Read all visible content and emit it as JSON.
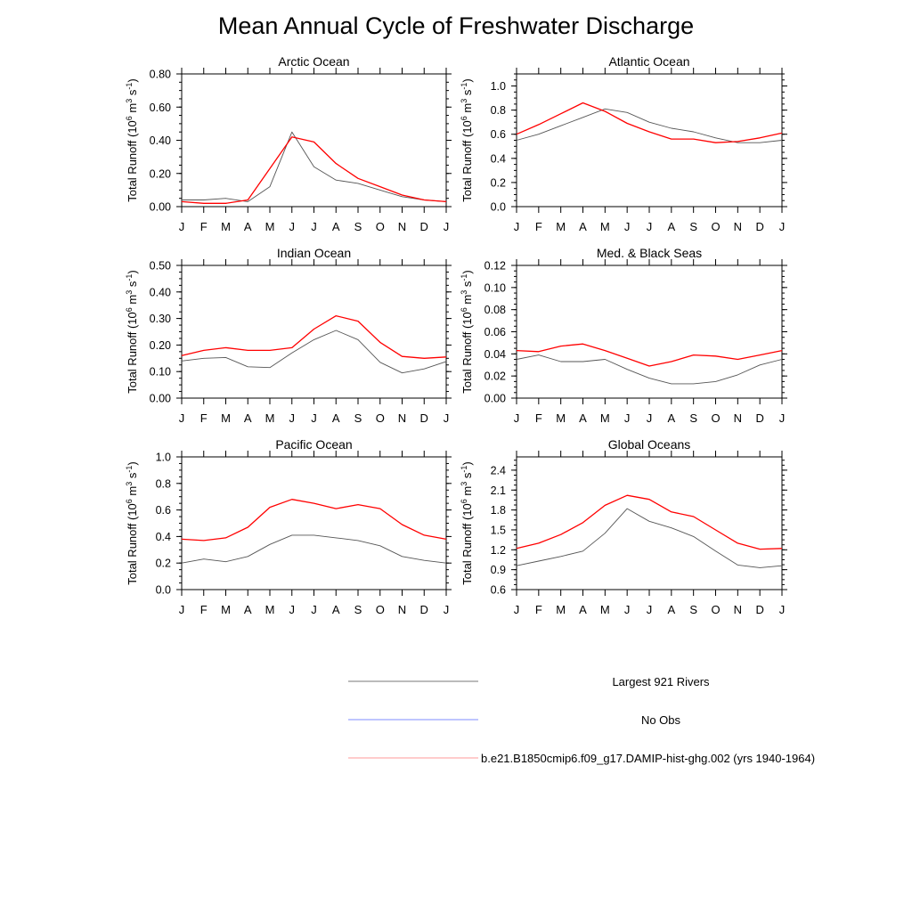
{
  "title": "Mean Annual Cycle of Freshwater Discharge",
  "chart_data": [
    {
      "type": "line",
      "title": "Arctic Ocean",
      "ylabel": "Total Runoff (10^6 m^3 s^-1)",
      "x": [
        "J",
        "F",
        "M",
        "A",
        "M",
        "J",
        "J",
        "A",
        "S",
        "O",
        "N",
        "D",
        "J"
      ],
      "ylim": [
        0,
        0.8
      ],
      "yticks": [
        "0.00",
        "0.20",
        "0.40",
        "0.60",
        "0.80"
      ],
      "series": [
        {
          "name": "Largest 921 Rivers",
          "color": "#555555",
          "values": [
            0.04,
            0.04,
            0.05,
            0.03,
            0.12,
            0.45,
            0.24,
            0.16,
            0.14,
            0.1,
            0.06,
            0.04,
            0.03
          ]
        },
        {
          "name": "b.e21.B1850cmip6.f09_g17.DAMIP-hist-ghg.002 (yrs 1940-1964)",
          "color": "#ff0000",
          "values": [
            0.03,
            0.02,
            0.02,
            0.04,
            0.23,
            0.42,
            0.39,
            0.26,
            0.17,
            0.12,
            0.07,
            0.04,
            0.03
          ]
        }
      ]
    },
    {
      "type": "line",
      "title": "Atlantic Ocean",
      "ylabel": "Total Runoff (10^6 m^3 s^-1)",
      "x": [
        "J",
        "F",
        "M",
        "A",
        "M",
        "J",
        "J",
        "A",
        "S",
        "O",
        "N",
        "D",
        "J"
      ],
      "ylim": [
        0,
        1.1
      ],
      "yticks": [
        "0.0",
        "0.2",
        "0.4",
        "0.6",
        "0.8",
        "1.0"
      ],
      "series": [
        {
          "name": "Largest 921 Rivers",
          "color": "#555555",
          "values": [
            0.55,
            0.6,
            0.67,
            0.74,
            0.81,
            0.78,
            0.7,
            0.65,
            0.62,
            0.57,
            0.53,
            0.53,
            0.55
          ]
        },
        {
          "name": "b.e21.B1850cmip6.f09_g17.DAMIP-hist-ghg.002 (yrs 1940-1964)",
          "color": "#ff0000",
          "values": [
            0.6,
            0.68,
            0.77,
            0.86,
            0.79,
            0.69,
            0.62,
            0.56,
            0.56,
            0.53,
            0.54,
            0.57,
            0.61
          ]
        }
      ]
    },
    {
      "type": "line",
      "title": "Indian Ocean",
      "ylabel": "Total Runoff (10^6 m^3 s^-1)",
      "x": [
        "J",
        "F",
        "M",
        "A",
        "M",
        "J",
        "J",
        "A",
        "S",
        "O",
        "N",
        "D",
        "J"
      ],
      "ylim": [
        0,
        0.5
      ],
      "yticks": [
        "0.00",
        "0.10",
        "0.20",
        "0.30",
        "0.40",
        "0.50"
      ],
      "series": [
        {
          "name": "Largest 921 Rivers",
          "color": "#555555",
          "values": [
            0.14,
            0.15,
            0.153,
            0.118,
            0.115,
            0.17,
            0.22,
            0.255,
            0.22,
            0.135,
            0.095,
            0.11,
            0.138
          ]
        },
        {
          "name": "b.e21.B1850cmip6.f09_g17.DAMIP-hist-ghg.002 (yrs 1940-1964)",
          "color": "#ff0000",
          "values": [
            0.16,
            0.18,
            0.19,
            0.18,
            0.18,
            0.19,
            0.26,
            0.31,
            0.29,
            0.21,
            0.157,
            0.15,
            0.155
          ]
        }
      ]
    },
    {
      "type": "line",
      "title": "Med. & Black Seas",
      "ylabel": "Total Runoff (10^6 m^3 s^-1)",
      "x": [
        "J",
        "F",
        "M",
        "A",
        "M",
        "J",
        "J",
        "A",
        "S",
        "O",
        "N",
        "D",
        "J"
      ],
      "ylim": [
        0,
        0.12
      ],
      "yticks": [
        "0.00",
        "0.02",
        "0.04",
        "0.06",
        "0.08",
        "0.10",
        "0.12"
      ],
      "series": [
        {
          "name": "Largest 921 Rivers",
          "color": "#555555",
          "values": [
            0.035,
            0.039,
            0.033,
            0.033,
            0.035,
            0.026,
            0.018,
            0.013,
            0.013,
            0.015,
            0.021,
            0.03,
            0.035
          ]
        },
        {
          "name": "b.e21.B1850cmip6.f09_g17.DAMIP-hist-ghg.002 (yrs 1940-1964)",
          "color": "#ff0000",
          "values": [
            0.043,
            0.042,
            0.047,
            0.049,
            0.043,
            0.036,
            0.029,
            0.033,
            0.039,
            0.038,
            0.035,
            0.039,
            0.043
          ]
        }
      ]
    },
    {
      "type": "line",
      "title": "Pacific Ocean",
      "ylabel": "Total Runoff (10^6 m^3 s^-1)",
      "x": [
        "J",
        "F",
        "M",
        "A",
        "M",
        "J",
        "J",
        "A",
        "S",
        "O",
        "N",
        "D",
        "J"
      ],
      "ylim": [
        0,
        1.0
      ],
      "yticks": [
        "0.0",
        "0.2",
        "0.4",
        "0.6",
        "0.8",
        "1.0"
      ],
      "series": [
        {
          "name": "Largest 921 Rivers",
          "color": "#555555",
          "values": [
            0.2,
            0.23,
            0.21,
            0.25,
            0.34,
            0.41,
            0.41,
            0.39,
            0.37,
            0.33,
            0.25,
            0.22,
            0.2
          ]
        },
        {
          "name": "b.e21.B1850cmip6.f09_g17.DAMIP-hist-ghg.002 (yrs 1940-1964)",
          "color": "#ff0000",
          "values": [
            0.38,
            0.37,
            0.39,
            0.47,
            0.62,
            0.68,
            0.65,
            0.61,
            0.64,
            0.61,
            0.49,
            0.41,
            0.38
          ]
        }
      ]
    },
    {
      "type": "line",
      "title": "Global Oceans",
      "ylabel": "Total Runoff (10^6 m^3 s^-1)",
      "x": [
        "J",
        "F",
        "M",
        "A",
        "M",
        "J",
        "J",
        "A",
        "S",
        "O",
        "N",
        "D",
        "J"
      ],
      "ylim": [
        0.6,
        2.6
      ],
      "yticks": [
        "0.6",
        "0.9",
        "1.2",
        "1.5",
        "1.8",
        "2.1",
        "2.4"
      ],
      "series": [
        {
          "name": "Largest 921 Rivers",
          "color": "#555555",
          "values": [
            0.96,
            1.03,
            1.1,
            1.18,
            1.45,
            1.82,
            1.63,
            1.53,
            1.4,
            1.18,
            0.97,
            0.93,
            0.96
          ]
        },
        {
          "name": "b.e21.B1850cmip6.f09_g17.DAMIP-hist-ghg.002 (yrs 1940-1964)",
          "color": "#ff0000",
          "values": [
            1.22,
            1.3,
            1.43,
            1.61,
            1.87,
            2.02,
            1.96,
            1.77,
            1.7,
            1.5,
            1.3,
            1.21,
            1.22
          ]
        }
      ]
    }
  ],
  "legend": {
    "items": [
      {
        "label": "Largest 921 Rivers",
        "color": "#777777"
      },
      {
        "label": "No Obs",
        "color": "#7f8cff"
      },
      {
        "label": "b.e21.B1850cmip6.f09_g17.DAMIP-hist-ghg.002 (yrs 1940-1964)",
        "color": "#ff9999"
      }
    ]
  }
}
